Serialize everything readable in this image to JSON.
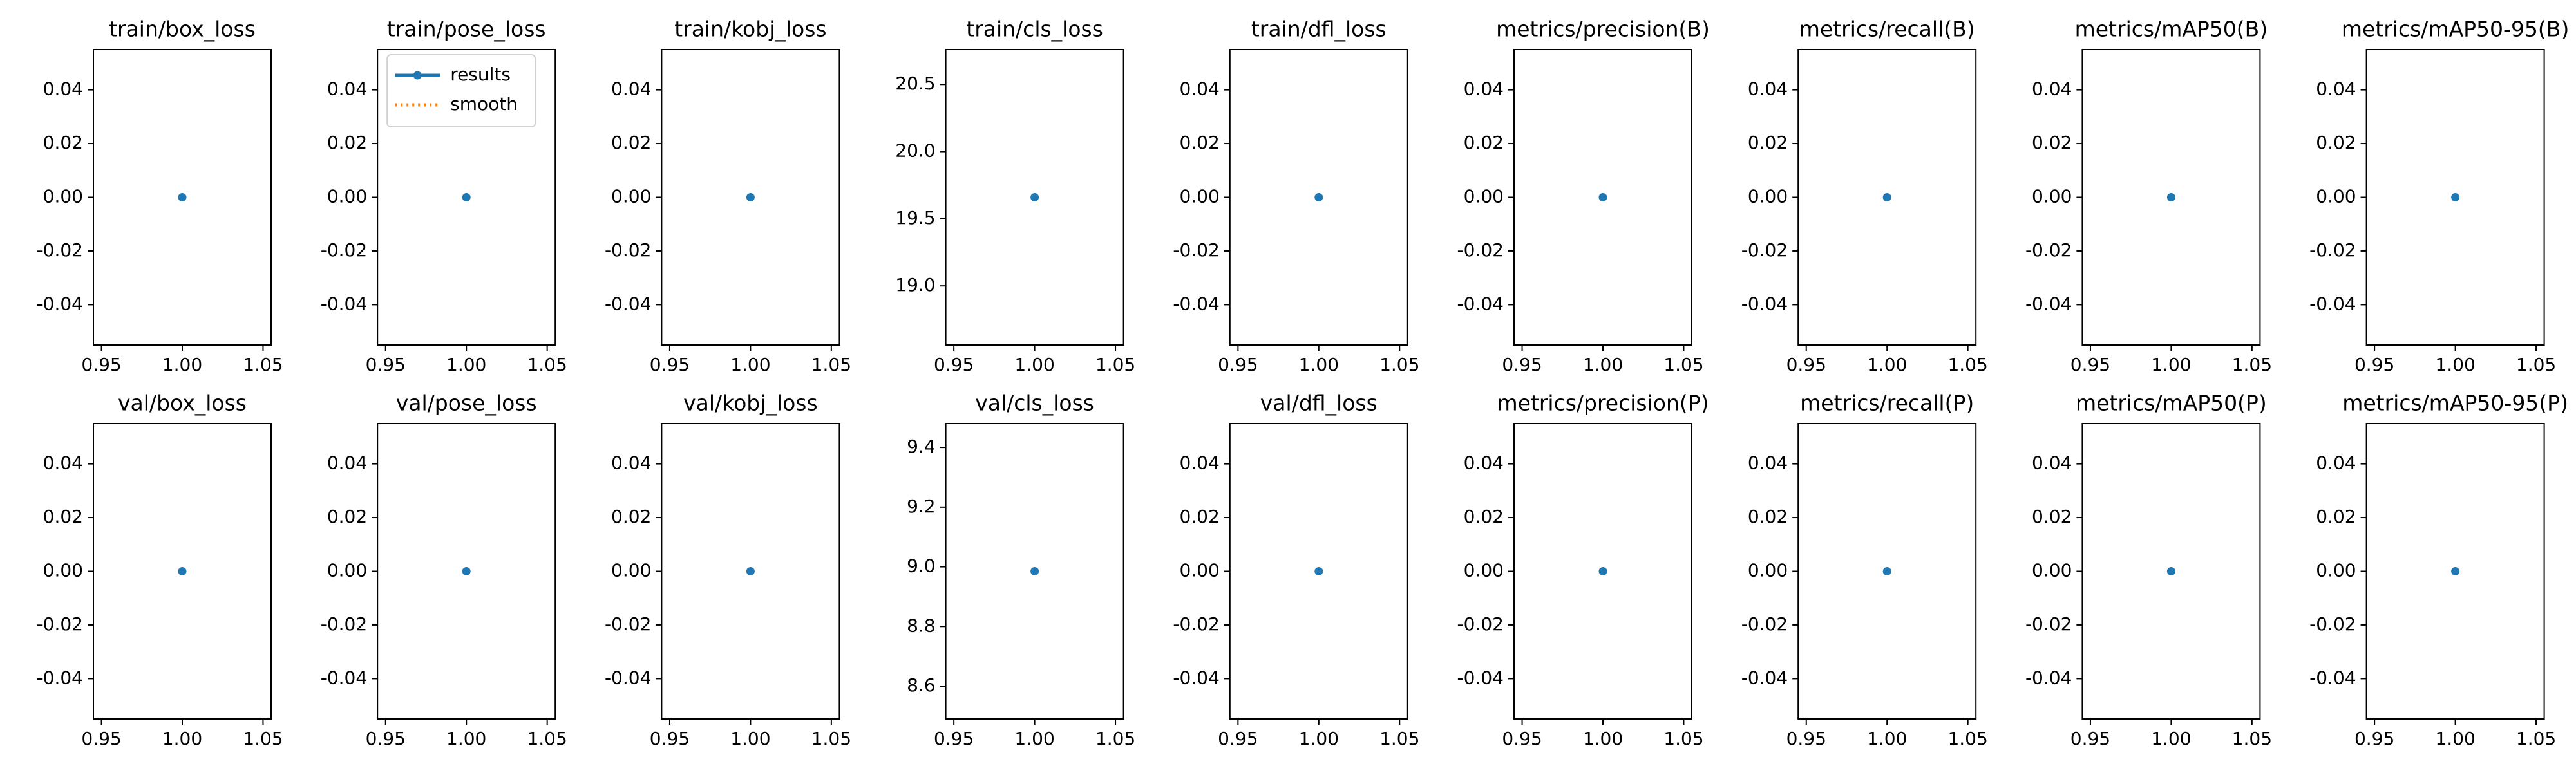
{
  "chart_data": [
    {
      "type": "line",
      "title": "train/box_loss",
      "x": [
        1
      ],
      "series": [
        {
          "color": "#1f77b4",
          "values": [
            0
          ]
        }
      ],
      "xlim": [
        0.945,
        1.055
      ],
      "xticks": [
        0.95,
        {
          "value": 1,
          "label": "1.00"
        },
        1.05
      ],
      "ylim": [
        -0.055,
        0.055
      ],
      "yticks": [
        -0.04,
        -0.02,
        {
          "value": 0,
          "label": "0.00"
        },
        0.02,
        0.04
      ]
    },
    {
      "type": "line",
      "title": "train/pose_loss",
      "x": [
        1
      ],
      "legend": "upper left",
      "series": [
        {
          "name": "results",
          "color": "#1f77b4",
          "values": [
            0
          ]
        },
        {
          "name": "smooth",
          "color": "#ff7f0e",
          "values": [
            null
          ]
        }
      ],
      "xlim": [
        0.945,
        1.055
      ],
      "xticks": [
        0.95,
        {
          "value": 1,
          "label": "1.00"
        },
        1.05
      ],
      "ylim": [
        -0.055,
        0.055
      ],
      "yticks": [
        -0.04,
        -0.02,
        {
          "value": 0,
          "label": "0.00"
        },
        0.02,
        0.04
      ]
    },
    {
      "type": "line",
      "title": "train/kobj_loss",
      "x": [
        1
      ],
      "series": [
        {
          "color": "#1f77b4",
          "values": [
            0
          ]
        }
      ],
      "xlim": [
        0.945,
        1.055
      ],
      "xticks": [
        0.95,
        {
          "value": 1,
          "label": "1.00"
        },
        1.05
      ],
      "ylim": [
        -0.055,
        0.055
      ],
      "yticks": [
        -0.04,
        -0.02,
        {
          "value": 0,
          "label": "0.00"
        },
        0.02,
        0.04
      ]
    },
    {
      "type": "line",
      "title": "train/cls_loss",
      "x": [
        1
      ],
      "series": [
        {
          "color": "#1f77b4",
          "values": [
            19.66
          ]
        }
      ],
      "xlim": [
        0.945,
        1.055
      ],
      "xticks": [
        0.95,
        {
          "value": 1,
          "label": "1.00"
        },
        1.05
      ],
      "ylim": [
        18.56,
        20.76
      ],
      "yticks": [
        {
          "value": 19,
          "label": "19.0"
        },
        19.5,
        {
          "value": 20,
          "label": "20.0"
        },
        20.5
      ]
    },
    {
      "type": "line",
      "title": "train/dfl_loss",
      "x": [
        1
      ],
      "series": [
        {
          "color": "#1f77b4",
          "values": [
            0
          ]
        }
      ],
      "xlim": [
        0.945,
        1.055
      ],
      "xticks": [
        0.95,
        {
          "value": 1,
          "label": "1.00"
        },
        1.05
      ],
      "ylim": [
        -0.055,
        0.055
      ],
      "yticks": [
        -0.04,
        -0.02,
        {
          "value": 0,
          "label": "0.00"
        },
        0.02,
        0.04
      ]
    },
    {
      "type": "line",
      "title": "metrics/precision(B)",
      "x": [
        1
      ],
      "series": [
        {
          "color": "#1f77b4",
          "values": [
            0
          ]
        }
      ],
      "xlim": [
        0.945,
        1.055
      ],
      "xticks": [
        0.95,
        {
          "value": 1,
          "label": "1.00"
        },
        1.05
      ],
      "ylim": [
        -0.055,
        0.055
      ],
      "yticks": [
        -0.04,
        -0.02,
        {
          "value": 0,
          "label": "0.00"
        },
        0.02,
        0.04
      ]
    },
    {
      "type": "line",
      "title": "metrics/recall(B)",
      "x": [
        1
      ],
      "series": [
        {
          "color": "#1f77b4",
          "values": [
            0
          ]
        }
      ],
      "xlim": [
        0.945,
        1.055
      ],
      "xticks": [
        0.95,
        {
          "value": 1,
          "label": "1.00"
        },
        1.05
      ],
      "ylim": [
        -0.055,
        0.055
      ],
      "yticks": [
        -0.04,
        -0.02,
        {
          "value": 0,
          "label": "0.00"
        },
        0.02,
        0.04
      ]
    },
    {
      "type": "line",
      "title": "metrics/mAP50(B)",
      "x": [
        1
      ],
      "series": [
        {
          "color": "#1f77b4",
          "values": [
            0
          ]
        }
      ],
      "xlim": [
        0.945,
        1.055
      ],
      "xticks": [
        0.95,
        {
          "value": 1,
          "label": "1.00"
        },
        1.05
      ],
      "ylim": [
        -0.055,
        0.055
      ],
      "yticks": [
        -0.04,
        -0.02,
        {
          "value": 0,
          "label": "0.00"
        },
        0.02,
        0.04
      ]
    },
    {
      "type": "line",
      "title": "metrics/mAP50-95(B)",
      "x": [
        1
      ],
      "series": [
        {
          "color": "#1f77b4",
          "values": [
            0
          ]
        }
      ],
      "xlim": [
        0.945,
        1.055
      ],
      "xticks": [
        0.95,
        {
          "value": 1,
          "label": "1.00"
        },
        1.05
      ],
      "ylim": [
        -0.055,
        0.055
      ],
      "yticks": [
        -0.04,
        -0.02,
        {
          "value": 0,
          "label": "0.00"
        },
        0.02,
        0.04
      ]
    },
    {
      "type": "line",
      "title": "val/box_loss",
      "x": [
        1
      ],
      "series": [
        {
          "color": "#1f77b4",
          "values": [
            0
          ]
        }
      ],
      "xlim": [
        0.945,
        1.055
      ],
      "xticks": [
        0.95,
        {
          "value": 1,
          "label": "1.00"
        },
        1.05
      ],
      "ylim": [
        -0.055,
        0.055
      ],
      "yticks": [
        -0.04,
        -0.02,
        {
          "value": 0,
          "label": "0.00"
        },
        0.02,
        0.04
      ]
    },
    {
      "type": "line",
      "title": "val/pose_loss",
      "x": [
        1
      ],
      "series": [
        {
          "color": "#1f77b4",
          "values": [
            0
          ]
        }
      ],
      "xlim": [
        0.945,
        1.055
      ],
      "xticks": [
        0.95,
        {
          "value": 1,
          "label": "1.00"
        },
        1.05
      ],
      "ylim": [
        -0.055,
        0.055
      ],
      "yticks": [
        -0.04,
        -0.02,
        {
          "value": 0,
          "label": "0.00"
        },
        0.02,
        0.04
      ]
    },
    {
      "type": "line",
      "title": "val/kobj_loss",
      "x": [
        1
      ],
      "series": [
        {
          "color": "#1f77b4",
          "values": [
            0
          ]
        }
      ],
      "xlim": [
        0.945,
        1.055
      ],
      "xticks": [
        0.95,
        {
          "value": 1,
          "label": "1.00"
        },
        1.05
      ],
      "ylim": [
        -0.055,
        0.055
      ],
      "yticks": [
        -0.04,
        -0.02,
        {
          "value": 0,
          "label": "0.00"
        },
        0.02,
        0.04
      ]
    },
    {
      "type": "line",
      "title": "val/cls_loss",
      "x": [
        1
      ],
      "series": [
        {
          "color": "#1f77b4",
          "values": [
            8.985
          ]
        }
      ],
      "xlim": [
        0.945,
        1.055
      ],
      "xticks": [
        0.95,
        {
          "value": 1,
          "label": "1.00"
        },
        1.05
      ],
      "ylim": [
        8.49,
        9.48
      ],
      "yticks": [
        8.6,
        8.8,
        {
          "value": 9,
          "label": "9.0"
        },
        9.2,
        9.4
      ]
    },
    {
      "type": "line",
      "title": "val/dfl_loss",
      "x": [
        1
      ],
      "series": [
        {
          "color": "#1f77b4",
          "values": [
            0
          ]
        }
      ],
      "xlim": [
        0.945,
        1.055
      ],
      "xticks": [
        0.95,
        {
          "value": 1,
          "label": "1.00"
        },
        1.05
      ],
      "ylim": [
        -0.055,
        0.055
      ],
      "yticks": [
        -0.04,
        -0.02,
        {
          "value": 0,
          "label": "0.00"
        },
        0.02,
        0.04
      ]
    },
    {
      "type": "line",
      "title": "metrics/precision(P)",
      "x": [
        1
      ],
      "series": [
        {
          "color": "#1f77b4",
          "values": [
            0
          ]
        }
      ],
      "xlim": [
        0.945,
        1.055
      ],
      "xticks": [
        0.95,
        {
          "value": 1,
          "label": "1.00"
        },
        1.05
      ],
      "ylim": [
        -0.055,
        0.055
      ],
      "yticks": [
        -0.04,
        -0.02,
        {
          "value": 0,
          "label": "0.00"
        },
        0.02,
        0.04
      ]
    },
    {
      "type": "line",
      "title": "metrics/recall(P)",
      "x": [
        1
      ],
      "series": [
        {
          "color": "#1f77b4",
          "values": [
            0
          ]
        }
      ],
      "xlim": [
        0.945,
        1.055
      ],
      "xticks": [
        0.95,
        {
          "value": 1,
          "label": "1.00"
        },
        1.05
      ],
      "ylim": [
        -0.055,
        0.055
      ],
      "yticks": [
        -0.04,
        -0.02,
        {
          "value": 0,
          "label": "0.00"
        },
        0.02,
        0.04
      ]
    },
    {
      "type": "line",
      "title": "metrics/mAP50(P)",
      "x": [
        1
      ],
      "series": [
        {
          "color": "#1f77b4",
          "values": [
            0
          ]
        }
      ],
      "xlim": [
        0.945,
        1.055
      ],
      "xticks": [
        0.95,
        {
          "value": 1,
          "label": "1.00"
        },
        1.05
      ],
      "ylim": [
        -0.055,
        0.055
      ],
      "yticks": [
        -0.04,
        -0.02,
        {
          "value": 0,
          "label": "0.00"
        },
        0.02,
        0.04
      ]
    },
    {
      "type": "line",
      "title": "metrics/mAP50-95(P)",
      "x": [
        1
      ],
      "series": [
        {
          "color": "#1f77b4",
          "values": [
            0
          ]
        }
      ],
      "xlim": [
        0.945,
        1.055
      ],
      "xticks": [
        0.95,
        {
          "value": 1,
          "label": "1.00"
        },
        1.05
      ],
      "ylim": [
        -0.055,
        0.055
      ],
      "yticks": [
        -0.04,
        -0.02,
        {
          "value": 0,
          "label": "0.00"
        },
        0.02,
        0.04
      ]
    }
  ]
}
